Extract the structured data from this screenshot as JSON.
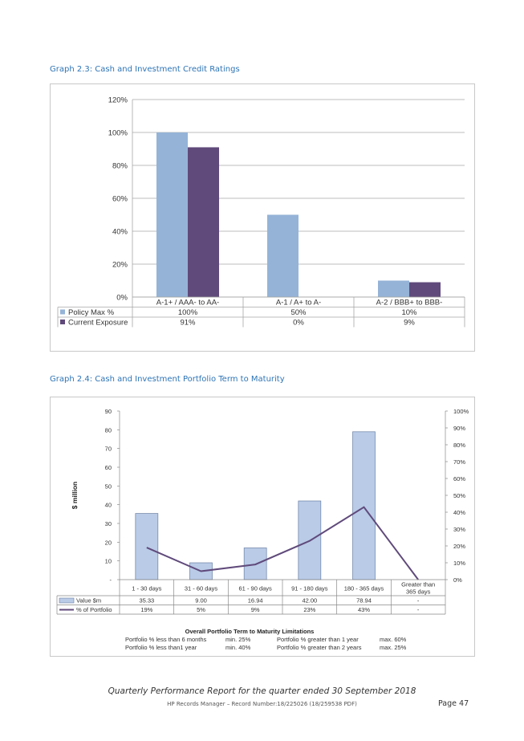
{
  "graph1": {
    "heading": "Graph 2.3:  Cash and Investment Credit Ratings",
    "colors": {
      "policy": "#95b3d7",
      "current": "#604a7b"
    },
    "y_ticks": [
      "120%",
      "100%",
      "80%",
      "60%",
      "40%",
      "20%",
      "0%"
    ],
    "table_rows": [
      {
        "label": "Policy Max %",
        "cells": [
          "100%",
          "50%",
          "10%"
        ]
      },
      {
        "label": "Current Exposure",
        "cells": [
          "91%",
          "0%",
          "9%"
        ]
      }
    ]
  },
  "graph2": {
    "heading": "Graph 2.4:  Cash and Investment Portfolio Term to Maturity",
    "ylabel": "$ million",
    "left_ticks": [
      "90",
      "80",
      "70",
      "60",
      "50",
      "40",
      "30",
      "20",
      "10",
      "-"
    ],
    "right_ticks": [
      "100%",
      "90%",
      "80%",
      "70%",
      "60%",
      "50%",
      "40%",
      "30%",
      "20%",
      "10%",
      "0%"
    ],
    "colors": {
      "bar": "#b9cbe7",
      "line": "#604a7b"
    },
    "table_rows": [
      {
        "label": "Value $m",
        "cells": [
          "35.33",
          "9.00",
          "16.94",
          "42.00",
          "78.94",
          "-"
        ]
      },
      {
        "label": "% of Portfolio",
        "cells": [
          "19%",
          "5%",
          "9%",
          "23%",
          "43%",
          "-"
        ]
      }
    ],
    "limits_title": "Overall Portfolio Term to Maturity Limitations",
    "limits": [
      [
        "Portfolio % less than 6 months",
        "min. 25%",
        "Portfolio % greater than 1 year",
        "max. 60%"
      ],
      [
        "Portfolio % less than1 year",
        "min. 40%",
        "Portfolio % greater than 2 years",
        "max. 25%"
      ]
    ]
  },
  "chart_data": [
    {
      "type": "bar",
      "title": "",
      "categories": [
        "A-1+ / AAA- to AA-",
        "A-1 / A+ to A-",
        "A-2 / BBB+ to BBB-"
      ],
      "series": [
        {
          "name": "Policy Max %",
          "values": [
            100,
            50,
            10
          ]
        },
        {
          "name": "Current Exposure",
          "values": [
            91,
            0,
            9
          ]
        }
      ],
      "xlabel": "",
      "ylabel": "",
      "ylim": [
        0,
        120
      ],
      "y_unit": "%",
      "grid": true,
      "legend": "table-below"
    },
    {
      "type": "bar",
      "title": "",
      "categories": [
        "1 - 30 days",
        "31 - 60 days",
        "61 - 90 days",
        "91 - 180 days",
        "180 - 365 days",
        "Greater than 365 days"
      ],
      "series": [
        {
          "name": "Value $m",
          "type": "bar",
          "axis": "left",
          "values": [
            35.33,
            9.0,
            16.94,
            42.0,
            78.94,
            0
          ]
        },
        {
          "name": "% of Portfolio",
          "type": "line",
          "axis": "right",
          "values": [
            19,
            5,
            9,
            23,
            43,
            0
          ]
        }
      ],
      "xlabel": "",
      "ylabel": "$ million",
      "ylim": [
        0,
        90
      ],
      "y2lim": [
        0,
        100
      ],
      "y2_unit": "%",
      "grid": false,
      "legend": "table-below"
    }
  ],
  "footer": {
    "title": "Quarterly Performance Report for the quarter ended 30 September 2018",
    "record": "HP Records Manager – Record Number:18/225026 (18/259538 PDF)",
    "page": "Page 47"
  }
}
